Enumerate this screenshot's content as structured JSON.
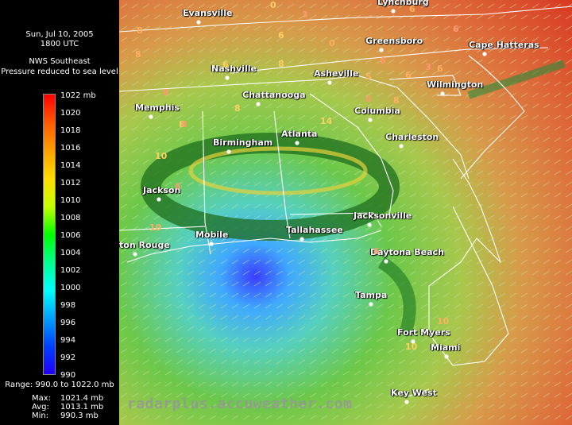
{
  "header": {
    "date": "Sun, Jul 10, 2005",
    "time": "1800 UTC",
    "source": "NWS Southeast",
    "product": "Pressure reduced to sea level"
  },
  "legend": {
    "unit_label": "1022 mb",
    "ticks": [
      "1020",
      "1018",
      "1016",
      "1014",
      "1012",
      "1010",
      "1008",
      "1006",
      "1004",
      "1002",
      "1000",
      "998",
      "996",
      "994",
      "992",
      "990"
    ],
    "range": "Range: 990.0 to 1022.0 mb"
  },
  "stats": {
    "max_label": "Max:",
    "max_value": "1021.4 mb",
    "avg_label": "Avg:",
    "avg_value": "1013.1 mb",
    "min_label": "Min:",
    "min_value": "990.3 mb"
  },
  "cities": [
    "Evansville",
    "Lynchburg",
    "Greensboro",
    "Cape Hatteras",
    "Nashville",
    "Asheville",
    "Wilmington",
    "Memphis",
    "Chattanooga",
    "Columbia",
    "Atlanta",
    "Birmingham",
    "Charleston",
    "Jackson",
    "Jacksonville",
    "Mobile",
    "Tallahassee",
    "ton Rouge",
    "Daytona Beach",
    "Tampa",
    "Fort Myers",
    "Miami",
    "Key West"
  ],
  "pressure_labels": [
    "8",
    "0",
    "3",
    "8",
    "6",
    "8",
    "0",
    "8",
    "3",
    "6",
    "6",
    "6",
    "5",
    "8",
    "6",
    "6",
    "8",
    "6",
    "6",
    "14",
    "6",
    "8",
    "10",
    "6",
    "10",
    "10",
    "8",
    "10"
  ],
  "watermark": "radarplus.accuweather.com",
  "colors": {
    "low": "#3a4cff",
    "mid": "#3fbf3f",
    "high": "#e03a22"
  }
}
